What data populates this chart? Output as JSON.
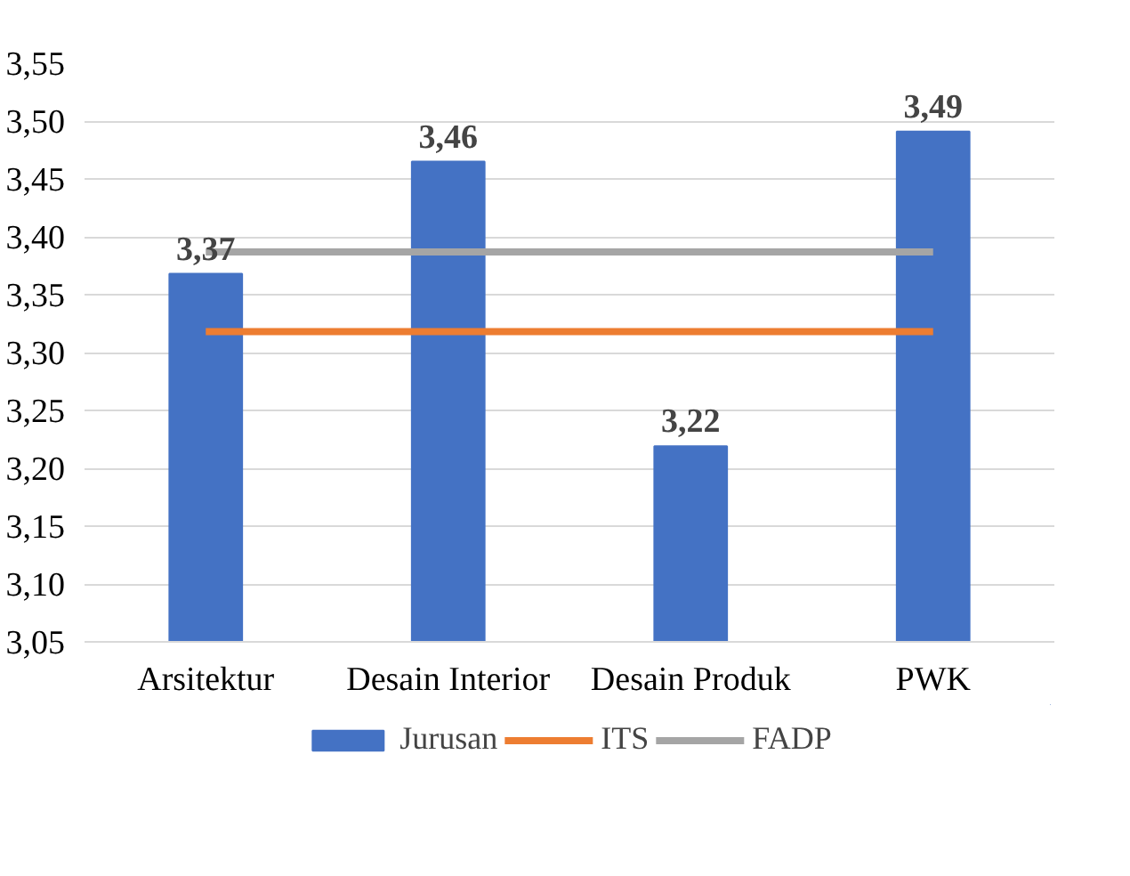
{
  "chart_data": {
    "type": "bar",
    "categories": [
      "Arsitektur",
      "Desain Interior",
      "Desain Produk",
      "PWK"
    ],
    "series": [
      {
        "name": "Jurusan",
        "color": "#4472c4",
        "values": [
          3.368,
          3.465,
          3.219,
          3.491
        ],
        "value_labels": [
          "3,37",
          "3,46",
          "3,22",
          "3,49"
        ]
      },
      {
        "name": "ITS",
        "type": "line",
        "color": "#ed7d31",
        "values": [
          3.318,
          3.318,
          3.318,
          3.318
        ]
      },
      {
        "name": "FADP",
        "type": "line",
        "color": "#a5a5a5",
        "values": [
          3.387,
          3.387,
          3.387,
          3.387
        ]
      }
    ],
    "ylim": [
      3.05,
      3.55
    ],
    "yticks": [
      {
        "value": 3.05,
        "label": "3,05"
      },
      {
        "value": 3.1,
        "label": "3,10"
      },
      {
        "value": 3.15,
        "label": "3,15"
      },
      {
        "value": 3.2,
        "label": "3,20"
      },
      {
        "value": 3.25,
        "label": "3,25"
      },
      {
        "value": 3.3,
        "label": "3,30"
      },
      {
        "value": 3.35,
        "label": "3,35"
      },
      {
        "value": 3.4,
        "label": "3,40"
      },
      {
        "value": 3.45,
        "label": "3,45"
      },
      {
        "value": 3.5,
        "label": "3,50"
      },
      {
        "value": 3.55,
        "label": "3,55"
      }
    ],
    "grid": "y",
    "legend": "bottom"
  }
}
